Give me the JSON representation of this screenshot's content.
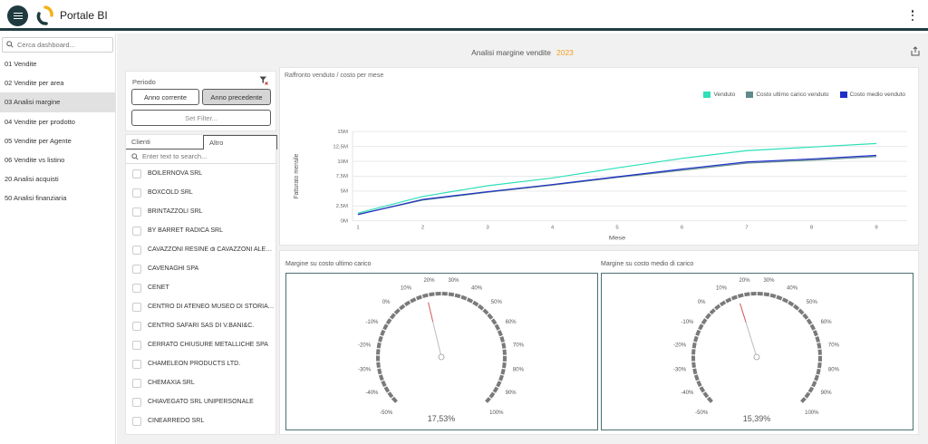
{
  "header": {
    "title": "Portale BI",
    "logo_icon": "portale-bi-logo",
    "menu_icon": "hamburger-menu-icon",
    "more_icon": "kebab-menu-icon"
  },
  "sidebar": {
    "search_placeholder": "Cerca dashboard...",
    "items": [
      {
        "label": "01 Vendite",
        "active": false
      },
      {
        "label": "02 Vendite per area",
        "active": false
      },
      {
        "label": "03 Analisi margine",
        "active": true
      },
      {
        "label": "04 Vendite per prodotto",
        "active": false
      },
      {
        "label": "05 Vendite per Agente",
        "active": false
      },
      {
        "label": "06 Vendite vs listino",
        "active": false
      },
      {
        "label": "20 Analisi acquisti",
        "active": false
      },
      {
        "label": "50 Analisi finanziaria",
        "active": false
      }
    ]
  },
  "page": {
    "title": "Analisi margine vendite",
    "year": "2023",
    "year_color": "#f0a020"
  },
  "filters": {
    "period_label": "Periodo",
    "buttons": {
      "current": "Anno corrente",
      "previous": "Anno precedente",
      "set_filter": "Set Filter..."
    },
    "selected": "previous"
  },
  "customer_list": {
    "tabs": [
      "Clienti",
      "Altro"
    ],
    "search_placeholder": "Enter text to search...",
    "items": [
      "BOILERNOVA SRL",
      "BOXCOLD SRL",
      "BRINTAZZOLI SRL",
      "BY BARRET RADICA SRL",
      "CAVAZZONI RESINE di CAVAZZONI ALES...",
      "CAVENAGHI SPA",
      "CENET",
      "CENTRO DI ATENEO MUSEO DI STORIA ...",
      "CENTRO SAFARI SAS DI V.BANI&C.",
      "CERRATO CHIUSURE METALLICHE SPA",
      "CHAMELEON PRODUCTS LTD.",
      "CHEMAXIA SRL",
      "CHIAVEGATO SRL UNIPERSONALE",
      "CINEARREDO SRL"
    ]
  },
  "chart_data": {
    "type": "line",
    "title": "Raffronto venduto / costo per mese",
    "xlabel": "Mese",
    "ylabel": "Fatturato mensile",
    "x": [
      1,
      2,
      3,
      4,
      5,
      6,
      7,
      8,
      9
    ],
    "ylim": [
      0,
      15000000
    ],
    "yticks": [
      0,
      2500000,
      5000000,
      7500000,
      10000000,
      12500000,
      15000000
    ],
    "ytick_labels": [
      "0M",
      "2,5M",
      "5M",
      "7,5M",
      "10M",
      "12,5M",
      "15M"
    ],
    "grid": true,
    "legend_position": "top-right",
    "series": [
      {
        "name": "Venduto",
        "color": "#2ee0b8",
        "values": [
          1300000,
          4100000,
          5900000,
          7200000,
          8900000,
          10500000,
          11800000,
          12400000,
          13000000
        ]
      },
      {
        "name": "Costo ultimo carico venduto",
        "color": "#5f8a8b",
        "values": [
          1100000,
          3500000,
          4800000,
          6000000,
          7300000,
          8500000,
          9700000,
          10200000,
          10800000
        ]
      },
      {
        "name": "Costo medio venduto",
        "color": "#1f2fc8",
        "values": [
          1050000,
          3600000,
          4900000,
          6100000,
          7400000,
          8700000,
          9900000,
          10400000,
          11000000
        ]
      }
    ]
  },
  "gauges": [
    {
      "title": "Margine su costo ultimo carico",
      "value": 17.53,
      "value_label": "17,53%"
    },
    {
      "title": "Margine su costo medio di carico",
      "value": 15.39,
      "value_label": "15,39%"
    }
  ],
  "gauge_scale": {
    "min": -50,
    "max": 100,
    "tick_values": [
      -50,
      -40,
      -30,
      -20,
      -10,
      0,
      10,
      20,
      30,
      40,
      50,
      60,
      70,
      80,
      90,
      100
    ],
    "tick_labels": [
      "-50%",
      "-40%",
      "-30%",
      "-20%",
      "-10%",
      "0%",
      "10%",
      "20%",
      "30%",
      "40%",
      "50%",
      "60%",
      "70%",
      "80%",
      "90%",
      "100%"
    ],
    "needle_color": "#e06060"
  }
}
